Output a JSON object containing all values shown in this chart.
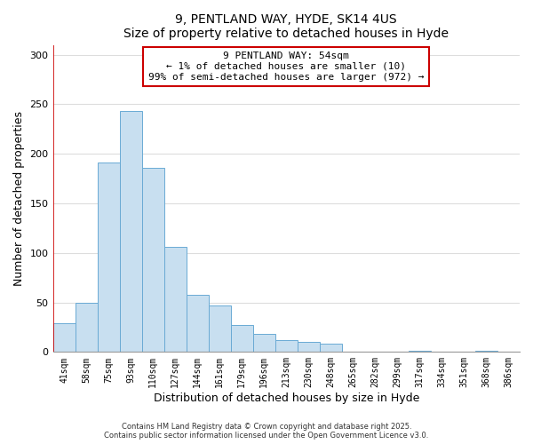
{
  "title": "9, PENTLAND WAY, HYDE, SK14 4US",
  "subtitle": "Size of property relative to detached houses in Hyde",
  "xlabel": "Distribution of detached houses by size in Hyde",
  "ylabel": "Number of detached properties",
  "bar_labels": [
    "41sqm",
    "58sqm",
    "75sqm",
    "93sqm",
    "110sqm",
    "127sqm",
    "144sqm",
    "161sqm",
    "179sqm",
    "196sqm",
    "213sqm",
    "230sqm",
    "248sqm",
    "265sqm",
    "282sqm",
    "299sqm",
    "317sqm",
    "334sqm",
    "351sqm",
    "368sqm",
    "386sqm"
  ],
  "bar_values": [
    29,
    50,
    191,
    243,
    186,
    106,
    58,
    47,
    27,
    18,
    12,
    10,
    8,
    0,
    0,
    0,
    1,
    0,
    0,
    1,
    0
  ],
  "bar_color": "#c8dff0",
  "bar_edge_color": "#6aaad4",
  "property_line_label": "9 PENTLAND WAY: 54sqm",
  "annotation_line1": "← 1% of detached houses are smaller (10)",
  "annotation_line2": "99% of semi-detached houses are larger (972) →",
  "annotation_box_color": "#ffffff",
  "annotation_box_edge": "#cc0000",
  "property_line_color": "#cc0000",
  "ylim": [
    0,
    310
  ],
  "yticks": [
    0,
    50,
    100,
    150,
    200,
    250,
    300
  ],
  "footer1": "Contains HM Land Registry data © Crown copyright and database right 2025.",
  "footer2": "Contains public sector information licensed under the Open Government Licence v3.0.",
  "background_color": "#ffffff",
  "grid_color": "#dddddd"
}
